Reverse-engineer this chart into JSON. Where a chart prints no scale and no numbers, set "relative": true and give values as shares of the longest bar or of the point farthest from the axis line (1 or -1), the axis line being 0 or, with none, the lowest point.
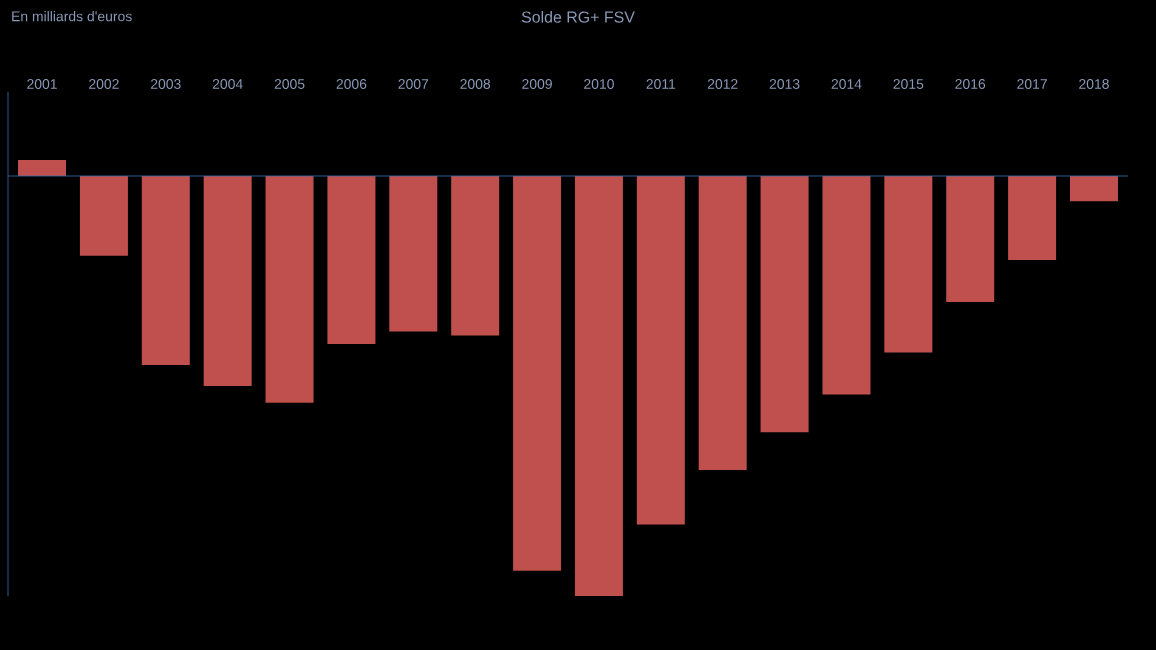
{
  "chart_data": {
    "type": "bar",
    "title": "Solde RG+ FSV",
    "annotations": [
      "En milliards d'euros"
    ],
    "categories": [
      "2001",
      "2002",
      "2003",
      "2004",
      "2005",
      "2006",
      "2007",
      "2008",
      "2009",
      "2010",
      "2011",
      "2012",
      "2013",
      "2014",
      "2015",
      "2016",
      "2017",
      "2018"
    ],
    "values": [
      0.038,
      -0.19,
      -0.45,
      -0.5,
      -0.54,
      -0.4,
      -0.37,
      -0.38,
      -0.94,
      -1,
      -0.83,
      -0.7,
      -0.61,
      -0.52,
      -0.42,
      -0.3,
      -0.2,
      -0.06
    ],
    "color": "#c0504d",
    "relative": true,
    "ref_lines": [
      {
        "axis": "y",
        "value": 0,
        "color": "#3a6fb0"
      }
    ]
  }
}
